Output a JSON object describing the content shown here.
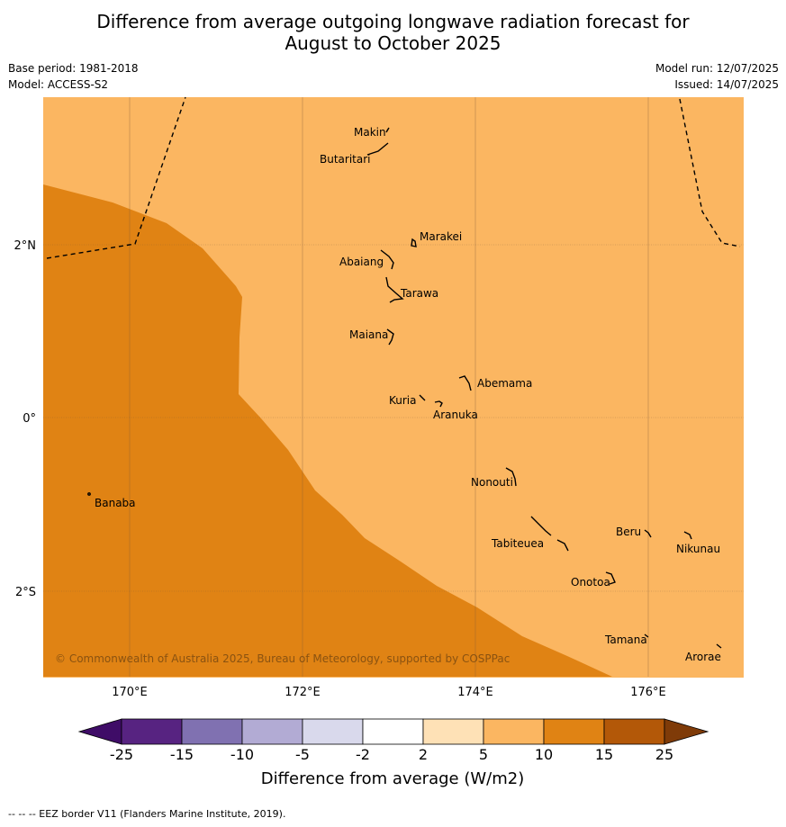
{
  "header": {
    "title_line1": "Difference from average outgoing longwave radiation forecast for",
    "title_line2": "August to October 2025",
    "base_period": "Base period: 1981-2018",
    "model": "Model: ACCESS-S2",
    "model_run": "Model run: 12/07/2025",
    "issued": "Issued: 14/07/2025"
  },
  "map": {
    "lat_labels": [
      "2°N",
      "0°",
      "2°S"
    ],
    "lon_labels": [
      "170°E",
      "172°E",
      "174°E",
      "176°E"
    ],
    "places": [
      {
        "name": "Makin"
      },
      {
        "name": "Butaritari"
      },
      {
        "name": "Marakei"
      },
      {
        "name": "Abaiang"
      },
      {
        "name": "Tarawa"
      },
      {
        "name": "Maiana"
      },
      {
        "name": "Abemama"
      },
      {
        "name": "Kuria"
      },
      {
        "name": "Aranuka"
      },
      {
        "name": "Banaba"
      },
      {
        "name": "Nonouti"
      },
      {
        "name": "Beru"
      },
      {
        "name": "Tabiteuea"
      },
      {
        "name": "Nikunau"
      },
      {
        "name": "Onotoa"
      },
      {
        "name": "Tamana"
      },
      {
        "name": "Arorae"
      }
    ],
    "copyright": "© Commonwealth of Australia 2025, Bureau of Meteorology, supported by COSPPac",
    "colors": {
      "category_5_10": "#fbb661",
      "category_10_15": "#e08314"
    }
  },
  "colorbar": {
    "ticks": [
      "-25",
      "-15",
      "-10",
      "-5",
      "-2",
      "2",
      "5",
      "10",
      "15",
      "25"
    ],
    "colors": [
      "#3f0c67",
      "#572381",
      "#8071b1",
      "#b2abd4",
      "#d9d9ec",
      "#ffffff",
      "#fee1b6",
      "#fbb661",
      "#e08314",
      "#b35808",
      "#7f3b08"
    ],
    "title": "Difference from average (W/m2)"
  },
  "footnote": "--  --  -- EEZ border V11 (Flanders Marine Institute, 2019)."
}
